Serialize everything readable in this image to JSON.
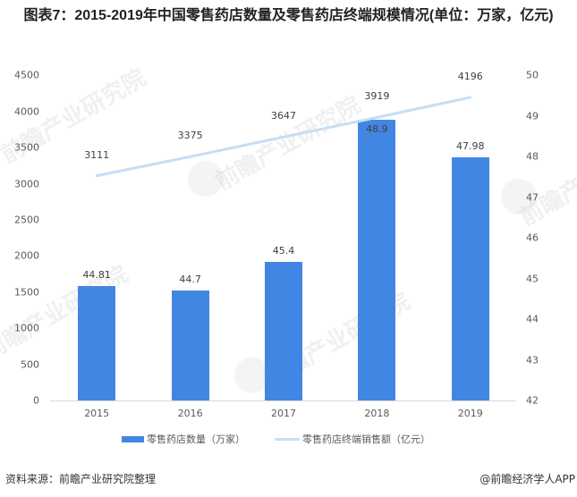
{
  "title": "图表7：2015-2019年中国零售药店数量及零售药店终端规模情况(单位：万家，亿元)",
  "watermark_text": "前瞻产业研究院",
  "footer": {
    "source": "资料来源：前瞻产业研究院整理",
    "credit": "@前瞻经济学人APP"
  },
  "colors": {
    "bar": "#4286E3",
    "line": "#C5DDF7",
    "axis": "#D9D9D9",
    "tick_text": "#595959"
  },
  "chart_data": {
    "type": "bar+line",
    "title": "图表7：2015-2019年中国零售药店数量及零售药店终端规模情况(单位：万家，亿元)",
    "categories": [
      "2015",
      "2016",
      "2017",
      "2018",
      "2019"
    ],
    "series": [
      {
        "name": "零售药店数量（万家）",
        "type": "bar",
        "axis": "right",
        "values": [
          44.81,
          44.7,
          45.4,
          48.9,
          47.98
        ],
        "labels": [
          "44.81",
          "44.7",
          "45.4",
          "48.9",
          "47.98"
        ]
      },
      {
        "name": "零售药店终端销售额（亿元）",
        "type": "line",
        "axis": "left",
        "values": [
          3111,
          3375,
          3647,
          3919,
          4196
        ],
        "labels": [
          "3111",
          "3375",
          "3647",
          "3919",
          "4196"
        ]
      }
    ],
    "left_axis": {
      "ticks": [
        "0",
        "500",
        "1000",
        "1500",
        "2000",
        "2500",
        "3000",
        "3500",
        "4000",
        "4500"
      ],
      "ylim": [
        0,
        4500
      ]
    },
    "right_axis": {
      "ticks": [
        "42",
        "43",
        "44",
        "45",
        "46",
        "47",
        "48",
        "49",
        "50"
      ],
      "ylim": [
        42,
        50
      ]
    },
    "xlabel": "",
    "ylabel": "",
    "grid": false,
    "legend_position": "bottom",
    "legend": [
      "零售药店数量（万家）",
      "零售药店终端销售额（亿元）"
    ]
  }
}
